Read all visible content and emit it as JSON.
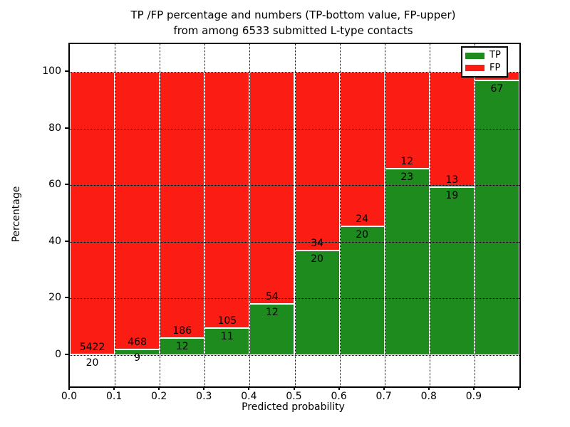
{
  "title": {
    "line1": "TP /FP percentage and numbers (TP-bottom value, FP-upper)",
    "line2": "from among 6533 submitted L-type contacts"
  },
  "legend": {
    "items": [
      {
        "label": "TP",
        "color": "#1e8b1e"
      },
      {
        "label": "FP",
        "color": "#fb1c13"
      }
    ]
  },
  "chart_data": {
    "type": "bar",
    "stacked": true,
    "title": "TP /FP percentage and numbers (TP-bottom value, FP-upper) from among 6533 submitted L-type contacts",
    "xlabel": "Predicted probability",
    "ylabel": "Percentage",
    "total_submitted_contacts": 6533,
    "x_tick_labels": [
      "0.0",
      "0.1",
      "0.2",
      "0.3",
      "0.4",
      "0.5",
      "0.6",
      "0.7",
      "0.8",
      "0.9"
    ],
    "y_tick_values": [
      0,
      20,
      40,
      60,
      80,
      100
    ],
    "xlim": [
      0.0,
      1.0
    ],
    "ylim": [
      -11,
      110
    ],
    "grid": "dotted",
    "legend_position": "upper right",
    "colors": {
      "tp": "#1e8b1e",
      "fp": "#fb1c13",
      "bar_edge": "#ffffff"
    },
    "series": [
      {
        "name": "TP",
        "color": "#1e8b1e",
        "role": "bottom segment, percentage of bar"
      },
      {
        "name": "FP",
        "color": "#fb1c13",
        "role": "top segment, remainder to 100%"
      }
    ],
    "bars": [
      {
        "bin": "0.0-0.1",
        "tp": 20,
        "fp": 5422,
        "tp_pct": 0.37,
        "tp_label": "20",
        "fp_label": "5422"
      },
      {
        "bin": "0.1-0.2",
        "tp": 9,
        "fp": 468,
        "tp_pct": 1.89,
        "tp_label": "9",
        "fp_label": "468"
      },
      {
        "bin": "0.2-0.3",
        "tp": 12,
        "fp": 186,
        "tp_pct": 6.06,
        "tp_label": "12",
        "fp_label": "186"
      },
      {
        "bin": "0.3-0.4",
        "tp": 11,
        "fp": 105,
        "tp_pct": 9.48,
        "tp_label": "11",
        "fp_label": "105"
      },
      {
        "bin": "0.4-0.5",
        "tp": 12,
        "fp": 54,
        "tp_pct": 18.18,
        "tp_label": "12",
        "fp_label": "54"
      },
      {
        "bin": "0.5-0.6",
        "tp": 20,
        "fp": 34,
        "tp_pct": 37.04,
        "tp_label": "20",
        "fp_label": "34"
      },
      {
        "bin": "0.6-0.7",
        "tp": 20,
        "fp": 24,
        "tp_pct": 45.45,
        "tp_label": "20",
        "fp_label": "24"
      },
      {
        "bin": "0.7-0.8",
        "tp": 23,
        "fp": 12,
        "tp_pct": 65.71,
        "tp_label": "23",
        "fp_label": "12"
      },
      {
        "bin": "0.8-0.9",
        "tp": 19,
        "fp": 13,
        "tp_pct": 59.38,
        "tp_label": "19",
        "fp_label": "13"
      },
      {
        "bin": "0.9-1.0",
        "tp": 67,
        "fp": null,
        "tp_pct": 97.1,
        "tp_label": "67",
        "fp_label": ""
      }
    ]
  }
}
